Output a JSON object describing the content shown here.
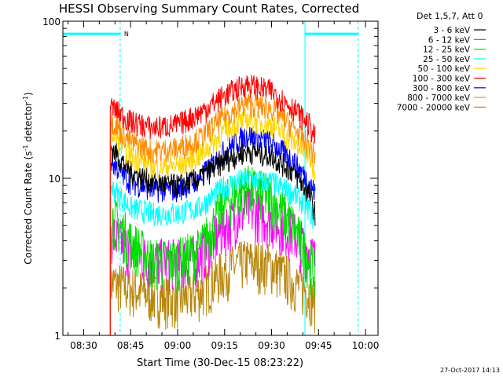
{
  "chart_data": {
    "type": "line",
    "title": "HESSI Observing Summary Count Rates, Corrected",
    "xlabel": "Start Time (30-Dec-15 08:23:22)",
    "ylabel_main": "Corrected Count Rate (s",
    "ylabel_sup1": "-1",
    "ylabel_mid": " detector",
    "ylabel_sup2": "-1",
    "ylabel_end": ")",
    "yscale": "log",
    "ylim": [
      1,
      100
    ],
    "xlim": [
      "08:23:22",
      "10:04:00"
    ],
    "xticks": [
      "08:30",
      "08:45",
      "09:00",
      "09:15",
      "09:30",
      "09:45",
      "10:00"
    ],
    "yticks": [
      "1",
      "10",
      "100"
    ],
    "legend_header": "Det 1,5,7, Att 0",
    "legend_position": "right",
    "footer_date": "27-Oct-2017 14:13",
    "flag_label": "N",
    "data_start": "08:38:30",
    "data_end": "09:44:00",
    "night_intervals": [
      [
        "08:23:22",
        "08:41:40"
      ],
      [
        "09:40:40",
        "09:57:40"
      ]
    ],
    "night_level": 83,
    "series": [
      {
        "name": "3 - 6 keV",
        "color": "#000000",
        "times": [
          "08:38:30",
          "08:45",
          "08:52",
          "09:00",
          "09:07",
          "09:15",
          "09:22",
          "09:30",
          "09:37",
          "09:42",
          "09:44"
        ],
        "values": [
          16,
          11,
          9.5,
          9,
          10,
          13,
          15,
          14,
          11,
          8,
          6
        ]
      },
      {
        "name": "6 - 12 keV",
        "color": "#ff00ff",
        "times": [
          "08:38:30",
          "08:45",
          "08:52",
          "09:00",
          "09:07",
          "09:15",
          "09:22",
          "09:30",
          "09:37",
          "09:42",
          "09:44"
        ],
        "values": [
          4.5,
          3.5,
          3.0,
          3.0,
          3.2,
          5.0,
          6.5,
          5.5,
          4.5,
          3.5,
          3.0
        ]
      },
      {
        "name": "12 - 25 keV",
        "color": "#00dd00",
        "times": [
          "08:38:30",
          "08:45",
          "08:52",
          "09:00",
          "09:07",
          "09:15",
          "09:22",
          "09:30",
          "09:37",
          "09:42",
          "09:44"
        ],
        "values": [
          6,
          4,
          3,
          3,
          3.5,
          7,
          9,
          7.5,
          5,
          3,
          2.5
        ]
      },
      {
        "name": "25 - 50 keV",
        "color": "#00ffff",
        "times": [
          "08:38:30",
          "08:45",
          "08:52",
          "09:00",
          "09:07",
          "09:15",
          "09:22",
          "09:30",
          "09:37",
          "09:42",
          "09:44"
        ],
        "values": [
          9,
          6.5,
          6,
          6,
          6.5,
          9,
          10,
          9.5,
          8,
          6.5,
          5
        ]
      },
      {
        "name": "50 - 100 keV",
        "color": "#ffd700",
        "times": [
          "08:38:30",
          "08:45",
          "08:52",
          "09:00",
          "09:07",
          "09:15",
          "09:22",
          "09:30",
          "09:37",
          "09:42",
          "09:44"
        ],
        "values": [
          20,
          14,
          12,
          12,
          14,
          20,
          24,
          22,
          17,
          14,
          11
        ]
      },
      {
        "name": "100 - 300 keV",
        "color": "#ff0000",
        "times": [
          "08:38:30",
          "08:45",
          "08:52",
          "09:00",
          "09:07",
          "09:15",
          "09:22",
          "09:30",
          "09:37",
          "09:42",
          "09:44"
        ],
        "values": [
          29,
          23,
          21,
          22,
          26,
          34,
          40,
          36,
          28,
          22,
          18
        ]
      },
      {
        "name": "300 - 800 keV",
        "color": "#0000ff",
        "times": [
          "08:38:30",
          "08:45",
          "08:52",
          "09:00",
          "09:07",
          "09:15",
          "09:22",
          "09:30",
          "09:37",
          "09:42",
          "09:44"
        ],
        "values": [
          13,
          9.5,
          8.5,
          8.5,
          10,
          15,
          19,
          17,
          13,
          9.5,
          8
        ]
      },
      {
        "name": "800 - 7000 keV",
        "color": "#ff8c00",
        "times": [
          "08:38:30",
          "08:45",
          "08:52",
          "09:00",
          "09:07",
          "09:15",
          "09:22",
          "09:30",
          "09:37",
          "09:42",
          "09:44"
        ],
        "values": [
          24,
          17,
          15,
          15.5,
          18,
          25,
          30,
          28,
          21,
          16,
          14
        ]
      },
      {
        "name": "7000 - 20000 keV",
        "color": "#b8860b",
        "times": [
          "08:38:30",
          "08:45",
          "08:52",
          "09:00",
          "09:07",
          "09:15",
          "09:22",
          "09:30",
          "09:37",
          "09:42",
          "09:44"
        ],
        "values": [
          2.2,
          2.0,
          1.8,
          1.7,
          1.9,
          2.6,
          3.0,
          2.8,
          2.2,
          1.9,
          1.6
        ]
      }
    ]
  }
}
